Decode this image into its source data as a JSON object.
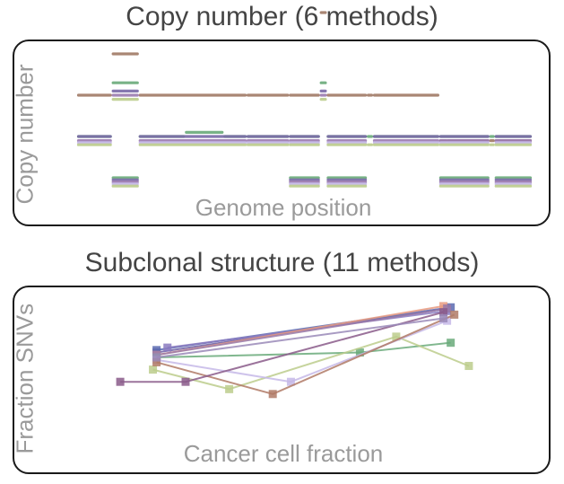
{
  "chart_data": [
    {
      "type": "line",
      "title": "Copy number (6 methods)",
      "xlabel": "Genome position",
      "ylabel": "Copy number",
      "methods": [
        {
          "color": "#a07a66",
          "segments": [
            [
              0,
              4.5,
              3
            ],
            [
              4.5,
              8,
              4
            ],
            [
              8,
              22,
              3
            ],
            [
              22,
              27.5,
              3
            ],
            [
              27.5,
              31.5,
              3
            ],
            [
              31.5,
              32.4,
              5
            ],
            [
              32.4,
              37.6,
              3
            ],
            [
              37.6,
              38.4,
              3
            ],
            [
              38.4,
              47,
              3
            ],
            [
              47,
              48,
              1.9
            ],
            [
              48,
              53.5,
              1.9
            ],
            [
              53.5,
              54.2,
              1.9
            ],
            [
              54.2,
              59,
              1.9
            ]
          ]
        },
        {
          "color": "#6aaa7a",
          "segments": [
            [
              0,
              4.5,
              2
            ],
            [
              4.5,
              8,
              3.3
            ],
            [
              8,
              14,
              2
            ],
            [
              14,
              19,
              2.1
            ],
            [
              19,
              22,
              2
            ],
            [
              22,
              27.5,
              2
            ],
            [
              27.5,
              31.5,
              2
            ],
            [
              31.5,
              32.4,
              3.3
            ],
            [
              32.4,
              37.6,
              2
            ],
            [
              37.6,
              38.4,
              2
            ],
            [
              38.4,
              47,
              2
            ],
            [
              47,
              53.5,
              2
            ],
            [
              53.5,
              54.2,
              2
            ],
            [
              54.2,
              59,
              2
            ],
            [
              4.5,
              8,
              1.0
            ],
            [
              27.5,
              31.5,
              1.0
            ],
            [
              32.4,
              37.6,
              1.0
            ],
            [
              47,
              53.5,
              1.0
            ],
            [
              54.2,
              59,
              1.0
            ]
          ]
        },
        {
          "color": "#7a6aa8",
          "segments": [
            [
              0,
              4.5,
              2
            ],
            [
              4.5,
              8,
              3.1
            ],
            [
              8,
              22,
              2
            ],
            [
              22,
              27.5,
              2
            ],
            [
              27.5,
              31.5,
              2
            ],
            [
              31.5,
              32.4,
              3.1
            ],
            [
              32.4,
              37.6,
              2
            ],
            [
              38.4,
              47,
              2
            ],
            [
              47,
              53.5,
              2
            ],
            [
              54.2,
              59,
              2
            ],
            [
              4.5,
              8,
              0.95
            ],
            [
              27.5,
              31.5,
              0.95
            ],
            [
              32.4,
              37.6,
              0.95
            ],
            [
              47,
              53.5,
              0.95
            ],
            [
              54.2,
              59,
              0.95
            ]
          ]
        },
        {
          "color": "#9b7bb0",
          "segments": [
            [
              0,
              4.5,
              1.9
            ],
            [
              4.5,
              8,
              3.0
            ],
            [
              8,
              22,
              1.9
            ],
            [
              22,
              27.5,
              1.9
            ],
            [
              27.5,
              31.5,
              1.9
            ],
            [
              31.5,
              32.4,
              3.0
            ],
            [
              32.4,
              37.6,
              1.9
            ],
            [
              38.4,
              47,
              1.9
            ],
            [
              47,
              53.5,
              1.9
            ],
            [
              54.2,
              59,
              1.9
            ],
            [
              4.5,
              8,
              0.9
            ],
            [
              27.5,
              31.5,
              0.9
            ],
            [
              32.4,
              37.6,
              0.9
            ],
            [
              47,
              53.5,
              0.9
            ],
            [
              54.2,
              59,
              0.9
            ]
          ]
        },
        {
          "color": "#c5b8e8",
          "segments": [
            [
              0,
              4.5,
              1.85
            ],
            [
              8,
              22,
              1.85
            ],
            [
              22,
              27.5,
              1.85
            ],
            [
              27.5,
              31.5,
              1.85
            ],
            [
              32.4,
              37.6,
              1.85
            ],
            [
              38.4,
              47,
              1.85
            ],
            [
              47,
              53.5,
              1.85
            ],
            [
              54.2,
              59,
              1.85
            ],
            [
              4.5,
              8,
              0.85
            ],
            [
              27.5,
              31.5,
              0.85
            ],
            [
              32.4,
              37.6,
              0.85
            ],
            [
              47,
              53.5,
              0.85
            ],
            [
              54.2,
              59,
              0.85
            ]
          ]
        },
        {
          "color": "#bccd8c",
          "segments": [
            [
              0,
              4.5,
              1.8
            ],
            [
              4.5,
              8,
              2.9
            ],
            [
              8,
              22,
              1.8
            ],
            [
              22,
              27.5,
              1.8
            ],
            [
              27.5,
              31.5,
              1.8
            ],
            [
              31.5,
              32.4,
              2.9
            ],
            [
              32.4,
              37.6,
              1.8
            ],
            [
              37.6,
              38.4,
              1.8
            ],
            [
              38.4,
              47,
              1.8
            ],
            [
              47,
              53.5,
              1.8
            ],
            [
              53.5,
              54.2,
              1.8
            ],
            [
              54.2,
              59,
              1.8
            ],
            [
              4.5,
              8,
              0.8
            ],
            [
              27.5,
              31.5,
              0.8
            ],
            [
              32.4,
              37.6,
              0.8
            ],
            [
              47,
              53.5,
              0.8
            ],
            [
              54.2,
              59,
              0.8
            ]
          ]
        }
      ]
    },
    {
      "type": "line",
      "title": "Subclonal structure (11 methods)",
      "xlabel": "Cancer cell fraction",
      "ylabel": "Fraction SNVs",
      "xlim": [
        0,
        1
      ],
      "ylim": [
        0,
        1
      ],
      "series": [
        {
          "color": "#6a5aa0",
          "points": [
            [
              0.12,
              0.54
            ],
            [
              0.92,
              0.9
            ]
          ]
        },
        {
          "color": "#5a6ab0",
          "points": [
            [
              0.12,
              0.56
            ],
            [
              0.93,
              0.91
            ]
          ]
        },
        {
          "color": "#8a7ac0",
          "points": [
            [
              0.15,
              0.58
            ],
            [
              0.92,
              0.88
            ]
          ]
        },
        {
          "color": "#e89a80",
          "points": [
            [
              0.12,
              0.52
            ],
            [
              0.91,
              0.92
            ]
          ]
        },
        {
          "color": "#9a7aa8",
          "points": [
            [
              0.12,
              0.52
            ],
            [
              0.92,
              0.9
            ]
          ]
        },
        {
          "color": "#6aaa7a",
          "points": [
            [
              0.12,
              0.5
            ],
            [
              0.68,
              0.54
            ],
            [
              0.93,
              0.62
            ]
          ]
        },
        {
          "color": "#bccd8c",
          "points": [
            [
              0.11,
              0.4
            ],
            [
              0.32,
              0.24
            ],
            [
              0.78,
              0.67
            ],
            [
              0.98,
              0.43
            ]
          ]
        },
        {
          "color": "#c5b8e8",
          "points": [
            [
              0.12,
              0.48
            ],
            [
              0.49,
              0.3
            ],
            [
              0.92,
              0.8
            ]
          ]
        },
        {
          "color": "#b07a66",
          "points": [
            [
              0.12,
              0.46
            ],
            [
              0.44,
              0.2
            ],
            [
              0.94,
              0.85
            ]
          ]
        },
        {
          "color": "#8a5a8a",
          "points": [
            [
              0.02,
              0.3
            ],
            [
              0.2,
              0.3
            ],
            [
              0.91,
              0.87
            ]
          ]
        },
        {
          "color": "#9a8ab8",
          "points": [
            [
              0.12,
              0.5
            ],
            [
              0.91,
              0.82
            ]
          ]
        }
      ]
    }
  ]
}
